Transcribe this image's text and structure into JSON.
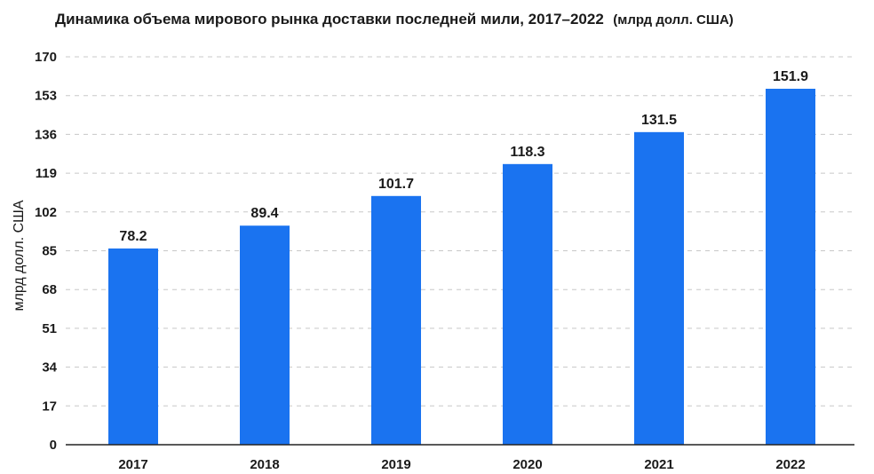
{
  "chart_data": {
    "type": "bar",
    "title": "Динамика объема мирового рынка доставки последней мили, 2017–2022",
    "title_unit": "(млрд долл. США)",
    "xlabel": "",
    "ylabel": "млрд долл. США",
    "categories": [
      "2017",
      "2018",
      "2019",
      "2020",
      "2021",
      "2022"
    ],
    "values": [
      78.2,
      89.4,
      101.7,
      118.3,
      131.5,
      151.9
    ],
    "value_labels": [
      "78.2",
      "89.4",
      "101.7",
      "118.3",
      "131.5",
      "151.9"
    ],
    "bar_lengths": [
      86,
      96,
      109,
      123,
      137,
      156
    ],
    "ylim": [
      0,
      170
    ],
    "yticks": [
      "0",
      "17",
      "34",
      "51",
      "68",
      "85",
      "102",
      "119",
      "136",
      "153",
      "170"
    ],
    "grid": true,
    "legend": "none",
    "colors": {
      "bar": "#1a73f0",
      "grid": "#c8c8c8",
      "axis": "#222222",
      "text": "#1a1a1a"
    }
  }
}
